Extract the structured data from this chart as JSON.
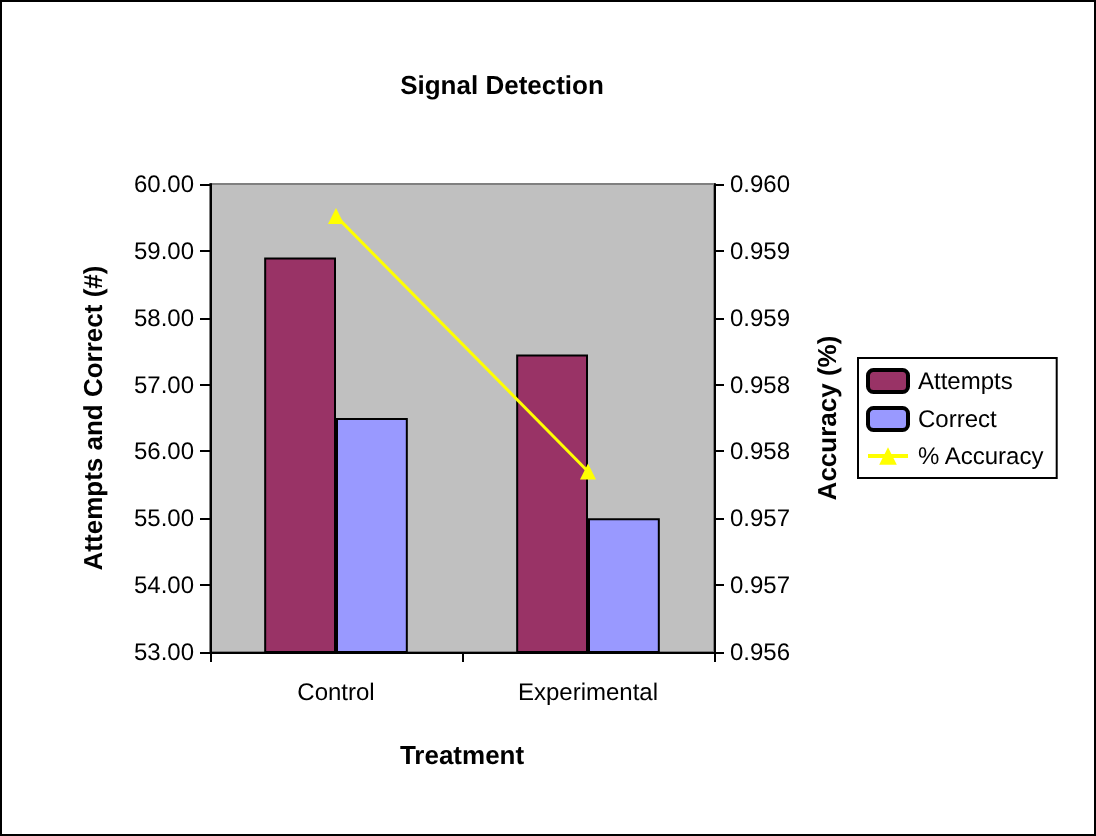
{
  "chart_data": {
    "type": "bar",
    "title": "Signal Detection",
    "xlabel": "Treatment",
    "ylabel": "Attempts and Correct (#)",
    "y2label": "Accuracy (%)",
    "categories": [
      "Control",
      "Experimental"
    ],
    "series": [
      {
        "name": "Attempts",
        "color": "#993366",
        "values": [
          58.9,
          57.45
        ]
      },
      {
        "name": "Correct",
        "color": "#9999ff",
        "values": [
          56.5,
          55.0
        ]
      },
      {
        "name": "% Accuracy",
        "color": "#ffff00",
        "type": "line",
        "axis": "y2",
        "marker": "triangle",
        "values": [
          0.95926,
          0.95735
        ]
      }
    ],
    "ylim": [
      53,
      60
    ],
    "yticks": [
      {
        "value": 53,
        "label": "53.00"
      },
      {
        "value": 54,
        "label": "54.00"
      },
      {
        "value": 55,
        "label": "55.00"
      },
      {
        "value": 56,
        "label": "56.00"
      },
      {
        "value": 57,
        "label": "57.00"
      },
      {
        "value": 58,
        "label": "58.00"
      },
      {
        "value": 59,
        "label": "59.00"
      },
      {
        "value": 60,
        "label": "60.00"
      }
    ],
    "y2lim": [
      0.956,
      0.9595
    ],
    "y2ticks": [
      {
        "value": 0.956,
        "label": "0.956"
      },
      {
        "value": 0.9565,
        "label": "0.957"
      },
      {
        "value": 0.957,
        "label": "0.957"
      },
      {
        "value": 0.9575,
        "label": "0.958"
      },
      {
        "value": 0.958,
        "label": "0.958"
      },
      {
        "value": 0.9585,
        "label": "0.959"
      },
      {
        "value": 0.959,
        "label": "0.959"
      },
      {
        "value": 0.9595,
        "label": "0.960"
      }
    ],
    "grid": false,
    "legend": "right"
  }
}
